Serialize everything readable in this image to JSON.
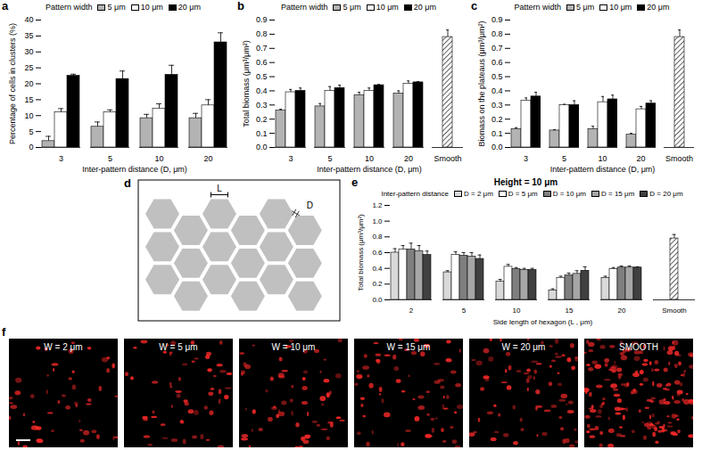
{
  "chart_data": [
    {
      "panel_label": "a",
      "type": "bar",
      "legend_title": "Pattern width",
      "x_label": "Inter-pattern distance (D, μm)",
      "y_label": "Percentage of cells in clusters (%)",
      "categories": [
        "3",
        "5",
        "10",
        "20"
      ],
      "ylim": [
        0,
        40
      ],
      "yticks": [
        0,
        5,
        10,
        15,
        20,
        25,
        30,
        35,
        40
      ],
      "series": [
        {
          "name": "5 μm",
          "color": "#b3b3b3",
          "values": [
            2,
            6.5,
            9.2,
            9.2
          ],
          "errors": [
            1.5,
            1.5,
            1.2,
            1.5
          ]
        },
        {
          "name": "10 μm",
          "color": "#ffffff",
          "values": [
            11,
            11,
            12.2,
            13.2
          ],
          "errors": [
            1.2,
            0.8,
            1.5,
            1.8
          ]
        },
        {
          "name": "20 μm",
          "color": "#000000",
          "values": [
            22.5,
            21.5,
            22.8,
            33
          ],
          "errors": [
            0.5,
            2.5,
            3,
            3
          ]
        }
      ]
    },
    {
      "panel_label": "b",
      "type": "bar",
      "legend_title": "Pattern width",
      "x_label": "Inter-pattern distance (D, μm)",
      "y_label": "Total biomass (μm³/μm²)",
      "categories": [
        "3",
        "5",
        "10",
        "20",
        "Smooth"
      ],
      "ylim": [
        0,
        0.9
      ],
      "yticks": [
        0,
        0.1,
        0.2,
        0.3,
        0.4,
        0.5,
        0.6,
        0.7,
        0.8,
        0.9
      ],
      "series": [
        {
          "name": "5 μm",
          "color": "#b3b3b3",
          "values": [
            0.26,
            0.29,
            0.37,
            0.38,
            null
          ],
          "errors": [
            0.01,
            0.02,
            0.02,
            0.02,
            null
          ]
        },
        {
          "name": "10 μm",
          "color": "#ffffff",
          "values": [
            0.39,
            0.4,
            0.4,
            0.45,
            null
          ],
          "errors": [
            0.02,
            0.03,
            0.02,
            0.02,
            null
          ]
        },
        {
          "name": "20 μm",
          "color": "#000000",
          "values": [
            0.4,
            0.42,
            0.44,
            0.46,
            null
          ],
          "errors": [
            0.02,
            0.02,
            0.005,
            0.005,
            null
          ]
        }
      ],
      "reference": {
        "category": "Smooth",
        "value": 0.78,
        "error": 0.05,
        "color": "#606060"
      }
    },
    {
      "panel_label": "c",
      "type": "bar",
      "legend_title": "Pattern width",
      "x_label": "Inter-pattern distance (D, μm)",
      "y_label": "Biomass on the plateaus (μm³/μm²)",
      "categories": [
        "3",
        "5",
        "10",
        "20",
        "Smooth"
      ],
      "ylim": [
        0,
        0.9
      ],
      "yticks": [
        0,
        0.1,
        0.2,
        0.3,
        0.4,
        0.5,
        0.6,
        0.7,
        0.8,
        0.9
      ],
      "series": [
        {
          "name": "5 μm",
          "color": "#b3b3b3",
          "values": [
            0.13,
            0.12,
            0.13,
            0.09,
            null
          ],
          "errors": [
            0.01,
            0.005,
            0.02,
            0.01,
            null
          ]
        },
        {
          "name": "10 μm",
          "color": "#ffffff",
          "values": [
            0.33,
            0.3,
            0.32,
            0.27,
            null
          ],
          "errors": [
            0.02,
            0.005,
            0.04,
            0.02,
            null
          ]
        },
        {
          "name": "20 μm",
          "color": "#000000",
          "values": [
            0.36,
            0.3,
            0.34,
            0.31,
            null
          ],
          "errors": [
            0.03,
            0.03,
            0.03,
            0.02,
            null
          ]
        }
      ],
      "reference": {
        "category": "Smooth",
        "value": 0.78,
        "error": 0.05,
        "color": "#606060"
      }
    },
    {
      "panel_label": "e",
      "type": "bar",
      "title": "Height = 10 μm",
      "legend_title": "Inter-pattern distance",
      "x_label": "Side length of hexagon (L , μm)",
      "y_label": "Total biomass (μm³/μm²)",
      "categories": [
        "2",
        "5",
        "10",
        "15",
        "20",
        "Smooth"
      ],
      "ylim": [
        0,
        1.2
      ],
      "yticks": [
        0,
        0.2,
        0.4,
        0.6,
        0.8,
        1,
        1.2
      ],
      "series": [
        {
          "name": "D = 2 μm",
          "color": "#d9d9d9",
          "values": [
            0.6,
            0.35,
            0.23,
            0.12,
            0.28,
            null
          ],
          "errors": [
            0.05,
            0.02,
            0.03,
            0.02,
            0.02,
            null
          ]
        },
        {
          "name": "D = 5 μm",
          "color": "#ffffff",
          "values": [
            0.64,
            0.57,
            0.42,
            0.28,
            0.39,
            null
          ],
          "errors": [
            0.05,
            0.04,
            0.03,
            0.02,
            0.02,
            null
          ]
        },
        {
          "name": "D = 10 μm",
          "color": "#7f7f7f",
          "values": [
            0.64,
            0.56,
            0.39,
            0.31,
            0.41,
            null
          ],
          "errors": [
            0.08,
            0.04,
            0.02,
            0.03,
            0.02,
            null
          ]
        },
        {
          "name": "D = 15 μm",
          "color": "#a6a6a6",
          "values": [
            0.62,
            0.55,
            0.38,
            0.33,
            0.41,
            null
          ],
          "errors": [
            0.07,
            0.05,
            0.02,
            0.04,
            0.02,
            null
          ]
        },
        {
          "name": "D = 20 μm",
          "color": "#404040",
          "values": [
            0.57,
            0.52,
            0.38,
            0.37,
            0.41,
            null
          ],
          "errors": [
            0.05,
            0.05,
            0.02,
            0.05,
            0.01,
            null
          ]
        }
      ],
      "reference": {
        "category": "Smooth",
        "value": 0.78,
        "error": 0.05,
        "color": "#606060"
      }
    }
  ],
  "diagram": {
    "panel_label": "d",
    "labels": {
      "side": "L",
      "gap": "D"
    }
  },
  "images": {
    "panel_label": "f",
    "labels": [
      "W = 2 μm",
      "W = 5 μm",
      "W = 10 μm",
      "W = 15 μm",
      "W = 20 μm",
      "SMOOTH"
    ]
  }
}
